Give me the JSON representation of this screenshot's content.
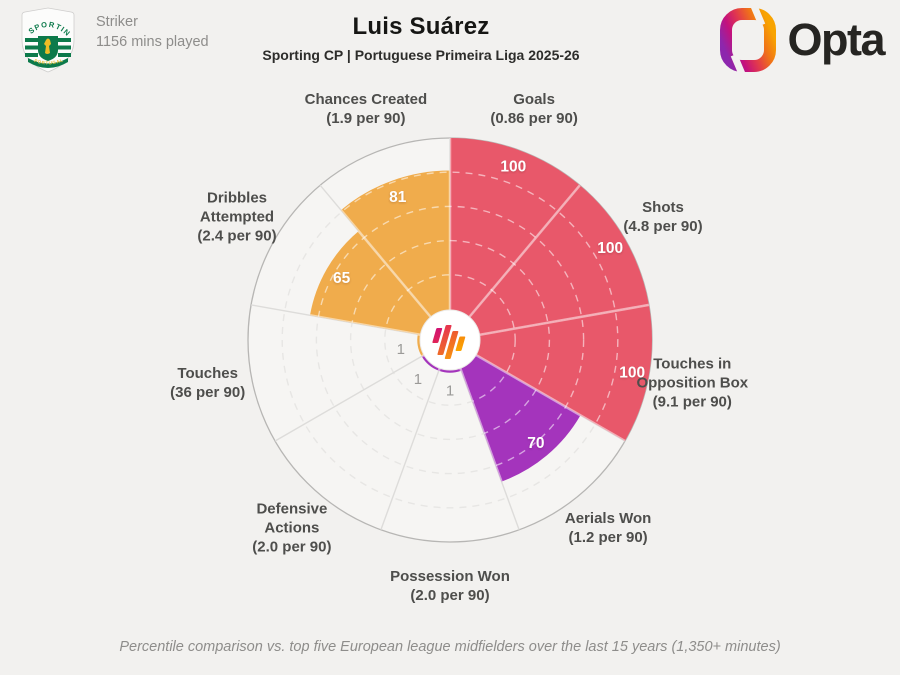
{
  "header": {
    "badge": {
      "team": "Sporting CP",
      "arc_text": "SPORTING",
      "banner_text": "PORTUGAL"
    },
    "player_position": "Striker",
    "minutes_played": "1156 mins played",
    "title": "Luis Suárez",
    "subtitle": "Sporting CP | Portuguese Primeira Liga 2025-26",
    "brand": {
      "wordmark": "Opta"
    }
  },
  "footer": {
    "note": "Percentile comparison vs. top five European league midfielders over the last 15 years (1,350+ minutes)"
  },
  "chart_data": {
    "type": "pie",
    "subtype": "percentile-pizza",
    "title": "Luis Suárez",
    "subtitle": "Sporting CP | Portuguese Primeira Liga 2025-26",
    "slice_order": "clockwise-from-top",
    "scale": [
      0,
      100
    ],
    "ring_ticks_pct": [
      20,
      40,
      60,
      80
    ],
    "palette": {
      "attacking": "#e8586a",
      "defending": "#a434bc",
      "possession": "#f0ac4c"
    },
    "background": "#f2f1ef",
    "empty_slice_fill": "#f6f5f3",
    "slices": [
      {
        "label": "Goals",
        "per90": "0.86 per 90",
        "label_lines": [
          "Goals",
          "(0.86 per 90)"
        ],
        "value": 100,
        "group": "attacking"
      },
      {
        "label": "Shots",
        "per90": "4.8 per 90",
        "label_lines": [
          "Shots",
          "(4.8 per 90)"
        ],
        "value": 100,
        "group": "attacking"
      },
      {
        "label": "Touches in Opposition Box",
        "per90": "9.1 per 90",
        "label_lines": [
          "Touches in",
          "Opposition Box",
          "(9.1 per 90)"
        ],
        "value": 100,
        "group": "attacking"
      },
      {
        "label": "Aerials Won",
        "per90": "1.2 per 90",
        "label_lines": [
          "Aerials Won",
          "(1.2 per 90)"
        ],
        "value": 70,
        "group": "defending"
      },
      {
        "label": "Possession Won",
        "per90": "2.0 per 90",
        "label_lines": [
          "Possession Won",
          "(2.0 per 90)"
        ],
        "value": 1,
        "group": "defending"
      },
      {
        "label": "Defensive Actions",
        "per90": "2.0 per 90",
        "label_lines": [
          "Defensive",
          "Actions",
          "(2.0 per 90)"
        ],
        "value": 1,
        "group": "defending"
      },
      {
        "label": "Touches",
        "per90": "36 per 90",
        "label_lines": [
          "Touches",
          "(36 per 90)"
        ],
        "value": 1,
        "group": "possession"
      },
      {
        "label": "Dribbles Attempted",
        "per90": "2.4 per 90",
        "label_lines": [
          "Dribbles",
          "Attempted",
          "(2.4 per 90)"
        ],
        "value": 65,
        "group": "possession"
      },
      {
        "label": "Chances Created",
        "per90": "1.9 per 90",
        "label_lines": [
          "Chances Created",
          "(1.9 per 90)"
        ],
        "value": 81,
        "group": "possession"
      }
    ]
  }
}
